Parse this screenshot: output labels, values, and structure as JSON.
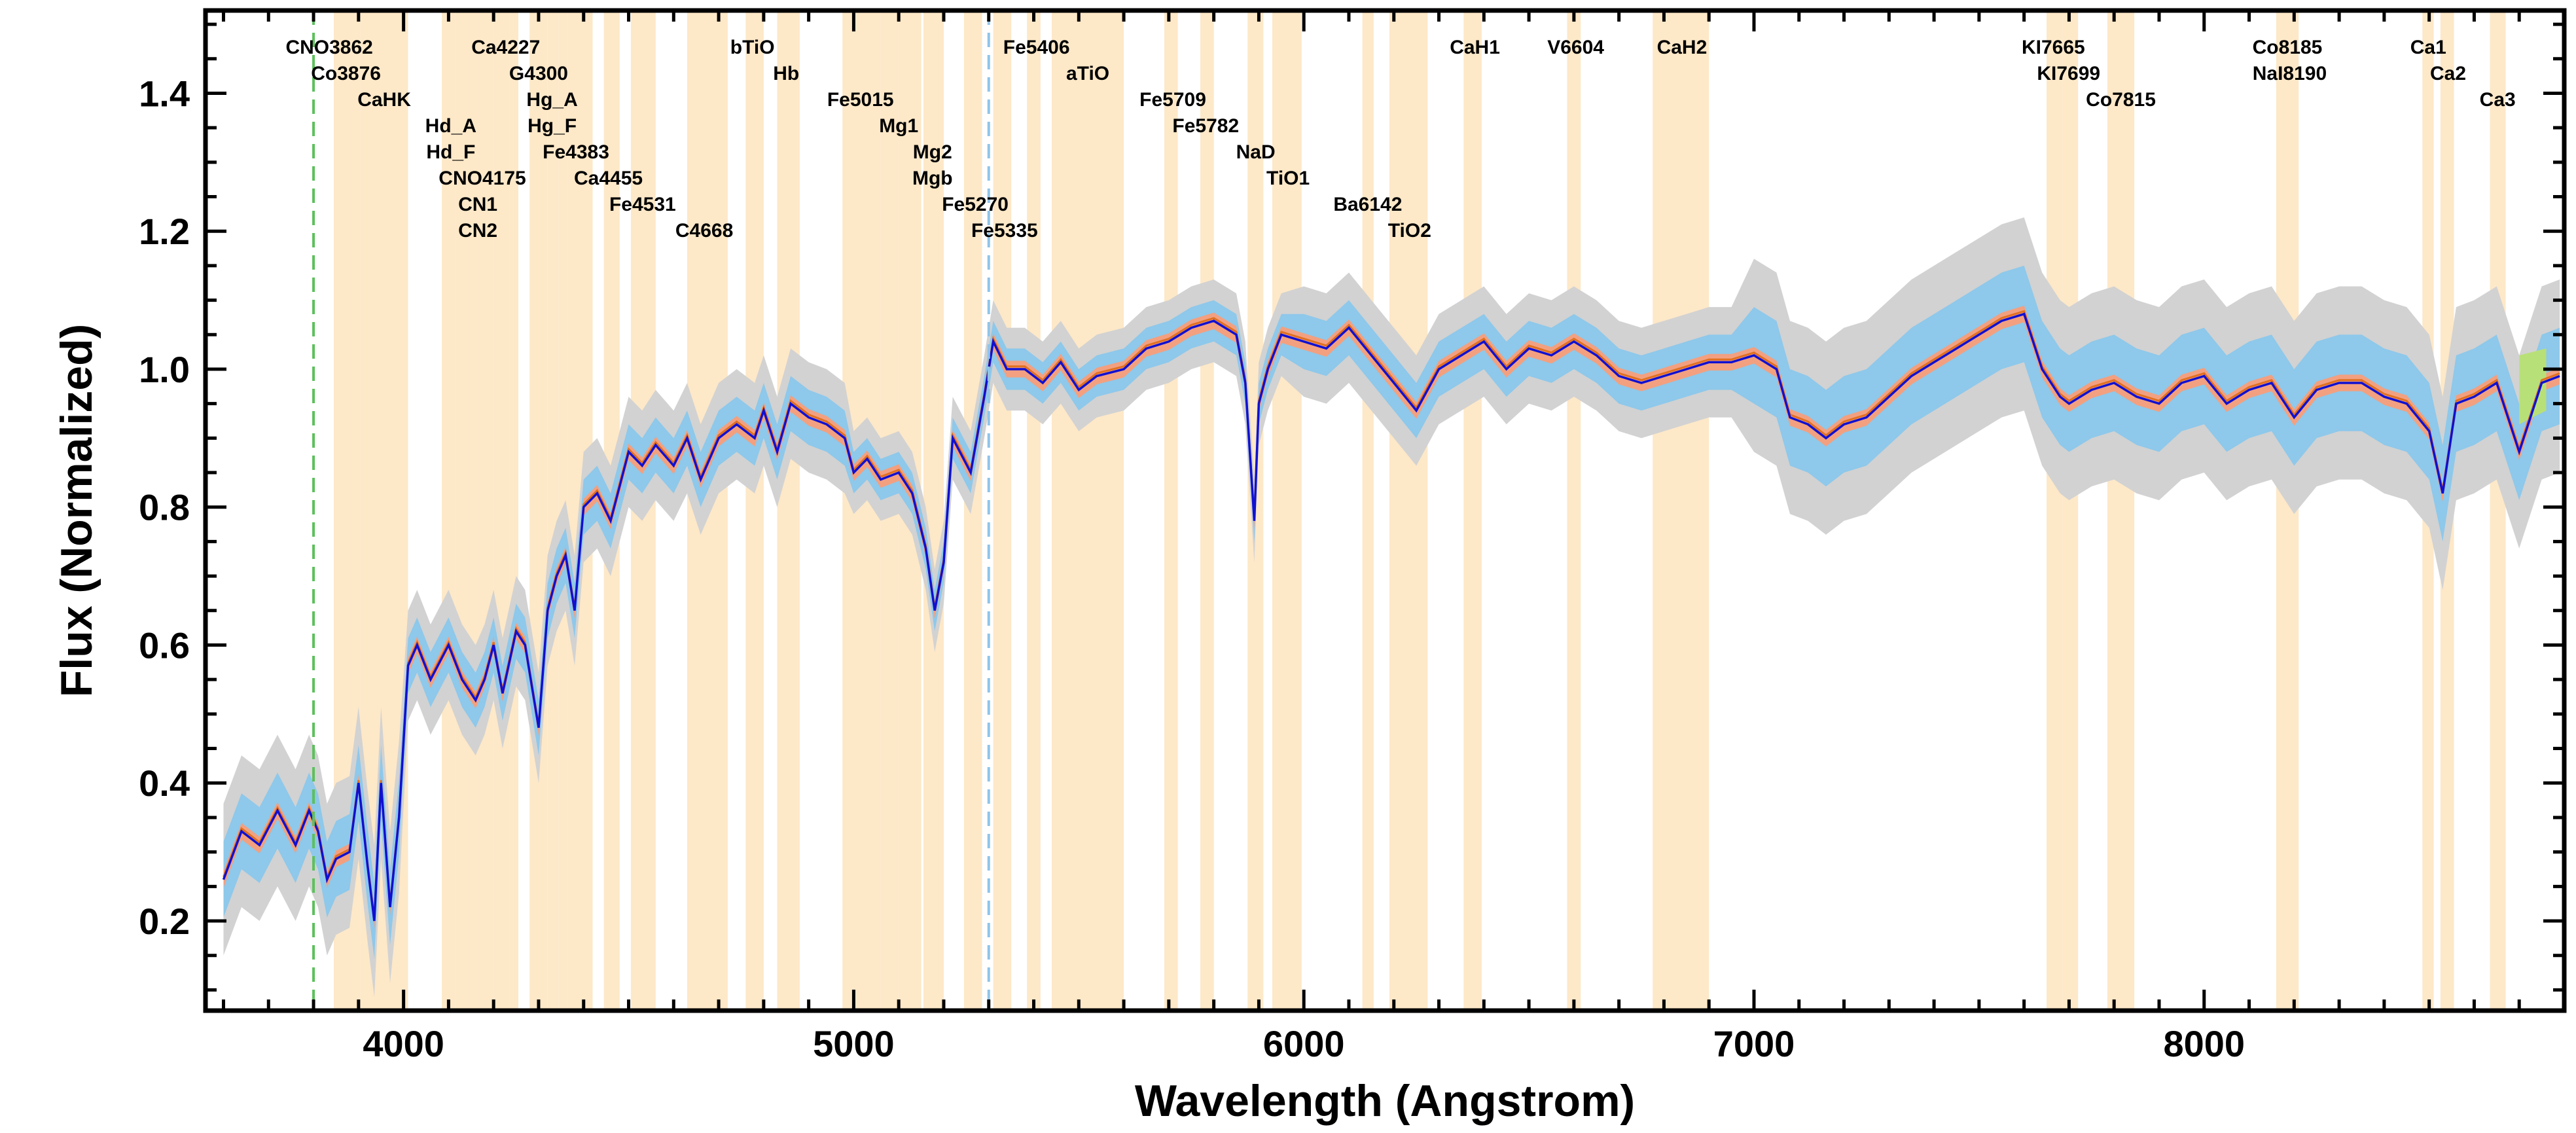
{
  "chart_data": {
    "type": "line",
    "title": "",
    "xlabel": "Wavelength (Angstrom)",
    "ylabel": "Flux (Normalized)",
    "xlim": [
      3560,
      8800
    ],
    "ylim": [
      0.07,
      1.52
    ],
    "xticks": [
      4000,
      5000,
      6000,
      7000,
      8000
    ],
    "xtick_labels": [
      "4000",
      "5000",
      "6000",
      "7000",
      "8000"
    ],
    "yticks": [
      0.2,
      0.4,
      0.6,
      0.8,
      1.0,
      1.2,
      1.4
    ],
    "ytick_labels": [
      "0.2",
      "0.4",
      "0.6",
      "0.8",
      "1.0",
      "1.2",
      "1.4"
    ],
    "grid": false,
    "legend": "none",
    "colors": {
      "spectrum": "#1010d0",
      "model": "#e07020",
      "sigma1": "#8ec8ea",
      "sigma2": "#d2d2d2",
      "sigma_model": "#f2a080",
      "extra_region": "#b8e078",
      "index_band": "#fde8c8",
      "marker_green": "#5cc05c",
      "marker_blue": "#8fc4ea"
    },
    "vertical_markers": [
      {
        "name": "green-dashed",
        "x": 3800
      },
      {
        "name": "blue-dashed",
        "x": 5300
      }
    ],
    "series": [
      {
        "kind": "spectrum",
        "x": [
          3600,
          3640,
          3680,
          3720,
          3760,
          3790,
          3810,
          3830,
          3850,
          3880,
          3900,
          3920,
          3935,
          3950,
          3970,
          3990,
          4010,
          4030,
          4060,
          4100,
          4130,
          4160,
          4180,
          4200,
          4220,
          4250,
          4270,
          4300,
          4320,
          4340,
          4360,
          4380,
          4400,
          4430,
          4460,
          4500,
          4530,
          4560,
          4600,
          4630,
          4660,
          4700,
          4740,
          4780,
          4800,
          4830,
          4860,
          4900,
          4940,
          4980,
          5000,
          5030,
          5060,
          5100,
          5130,
          5160,
          5180,
          5200,
          5220,
          5260,
          5290,
          5310,
          5340,
          5380,
          5420,
          5460,
          5500,
          5540,
          5600,
          5650,
          5700,
          5750,
          5800,
          5850,
          5870,
          5890,
          5900,
          5920,
          5950,
          6000,
          6050,
          6100,
          6150,
          6200,
          6250,
          6300,
          6350,
          6400,
          6450,
          6500,
          6550,
          6600,
          6650,
          6700,
          6750,
          6800,
          6850,
          6900,
          6950,
          7000,
          7050,
          7080,
          7120,
          7160,
          7200,
          7250,
          7300,
          7350,
          7400,
          7450,
          7500,
          7550,
          7600,
          7640,
          7680,
          7700,
          7750,
          7800,
          7850,
          7900,
          7950,
          8000,
          8050,
          8100,
          8150,
          8200,
          8250,
          8300,
          8350,
          8400,
          8450,
          8500,
          8530,
          8560,
          8600,
          8650,
          8700,
          8750,
          8790
        ],
        "y": [
          0.26,
          0.33,
          0.31,
          0.36,
          0.31,
          0.36,
          0.33,
          0.26,
          0.29,
          0.3,
          0.4,
          0.28,
          0.2,
          0.4,
          0.22,
          0.35,
          0.57,
          0.6,
          0.55,
          0.6,
          0.55,
          0.52,
          0.55,
          0.6,
          0.53,
          0.62,
          0.6,
          0.48,
          0.65,
          0.7,
          0.73,
          0.65,
          0.8,
          0.82,
          0.78,
          0.88,
          0.86,
          0.89,
          0.86,
          0.9,
          0.84,
          0.9,
          0.92,
          0.9,
          0.94,
          0.88,
          0.95,
          0.93,
          0.92,
          0.9,
          0.85,
          0.87,
          0.84,
          0.85,
          0.82,
          0.74,
          0.65,
          0.72,
          0.9,
          0.85,
          0.96,
          1.04,
          1.0,
          1.0,
          0.98,
          1.01,
          0.97,
          0.99,
          1.0,
          1.03,
          1.04,
          1.06,
          1.07,
          1.05,
          0.98,
          0.78,
          0.95,
          1.0,
          1.05,
          1.04,
          1.03,
          1.06,
          1.02,
          0.98,
          0.94,
          1.0,
          1.02,
          1.04,
          1.0,
          1.03,
          1.02,
          1.04,
          1.02,
          0.99,
          0.98,
          0.99,
          1.0,
          1.01,
          1.01,
          1.02,
          1.0,
          0.93,
          0.92,
          0.9,
          0.92,
          0.93,
          0.96,
          0.99,
          1.01,
          1.03,
          1.05,
          1.07,
          1.08,
          1.0,
          0.96,
          0.95,
          0.97,
          0.98,
          0.96,
          0.95,
          0.98,
          0.99,
          0.95,
          0.97,
          0.98,
          0.93,
          0.97,
          0.98,
          0.98,
          0.96,
          0.95,
          0.91,
          0.82,
          0.95,
          0.96,
          0.98,
          0.88,
          0.98,
          0.99
        ]
      }
    ],
    "index_bands": [
      {
        "name": "CNO3862",
        "x0": 3845,
        "x1": 3880
      },
      {
        "name": "Co3876",
        "x0": 3880,
        "x1": 3905
      },
      {
        "name": "CaHK",
        "x0": 3905,
        "x1": 4010
      },
      {
        "name": "Hd_A",
        "x0": 4085,
        "x1": 4115
      },
      {
        "name": "Hd_F",
        "x0": 4115,
        "x1": 4140
      },
      {
        "name": "CNO4175",
        "x0": 4140,
        "x1": 4165
      },
      {
        "name": "CN1",
        "x0": 4165,
        "x1": 4200
      },
      {
        "name": "CN2",
        "x0": 4200,
        "x1": 4235
      },
      {
        "name": "Ca4227",
        "x0": 4235,
        "x1": 4255
      },
      {
        "name": "G4300",
        "x0": 4280,
        "x1": 4320
      },
      {
        "name": "Hg_A",
        "x0": 4320,
        "x1": 4345
      },
      {
        "name": "Hg_F",
        "x0": 4345,
        "x1": 4365
      },
      {
        "name": "Fe4383",
        "x0": 4365,
        "x1": 4420
      },
      {
        "name": "Ca4455",
        "x0": 4445,
        "x1": 4480
      },
      {
        "name": "Fe4531",
        "x0": 4505,
        "x1": 4560
      },
      {
        "name": "C4668",
        "x0": 4630,
        "x1": 4720
      },
      {
        "name": "bTiO",
        "x0": 4760,
        "x1": 4800
      },
      {
        "name": "Hb",
        "x0": 4830,
        "x1": 4880
      },
      {
        "name": "Fe5015",
        "x0": 4975,
        "x1": 5060
      },
      {
        "name": "Mg1",
        "x0": 5060,
        "x1": 5100
      },
      {
        "name": "Mg2",
        "x0": 5100,
        "x1": 5150
      },
      {
        "name": "Mgb",
        "x0": 5155,
        "x1": 5200
      },
      {
        "name": "Fe5270",
        "x0": 5245,
        "x1": 5285
      },
      {
        "name": "Fe5335",
        "x0": 5310,
        "x1": 5350
      },
      {
        "name": "Fe5406",
        "x0": 5385,
        "x1": 5415
      },
      {
        "name": "aTiO",
        "x0": 5440,
        "x1": 5600
      },
      {
        "name": "Fe5709",
        "x0": 5690,
        "x1": 5720
      },
      {
        "name": "Fe5782",
        "x0": 5770,
        "x1": 5800
      },
      {
        "name": "NaD",
        "x0": 5875,
        "x1": 5910
      },
      {
        "name": "TiO1",
        "x0": 5930,
        "x1": 5995
      },
      {
        "name": "Ba6142",
        "x0": 6130,
        "x1": 6155
      },
      {
        "name": "TiO2",
        "x0": 6190,
        "x1": 6275
      },
      {
        "name": "CaH1",
        "x0": 6355,
        "x1": 6395
      },
      {
        "name": "V6604",
        "x0": 6585,
        "x1": 6615
      },
      {
        "name": "CaH2",
        "x0": 6775,
        "x1": 6900
      },
      {
        "name": "KI7665",
        "x0": 7650,
        "x1": 7685
      },
      {
        "name": "KI7699",
        "x0": 7685,
        "x1": 7720
      },
      {
        "name": "Co7815",
        "x0": 7785,
        "x1": 7845
      },
      {
        "name": "Co8185",
        "x0": 8160,
        "x1": 8190
      },
      {
        "name": "NaI8190",
        "x0": 8190,
        "x1": 8210
      },
      {
        "name": "Ca1",
        "x0": 8485,
        "x1": 8510
      },
      {
        "name": "Ca2",
        "x0": 8525,
        "x1": 8555
      },
      {
        "name": "Ca3",
        "x0": 8635,
        "x1": 8670
      }
    ],
    "band_labels": [
      {
        "text": "CNO3862",
        "x": 3835,
        "row": 0
      },
      {
        "text": "Co3876",
        "x": 3872,
        "row": 1
      },
      {
        "text": "CaHK",
        "x": 3957,
        "row": 2
      },
      {
        "text": "Hd_A",
        "x": 4105,
        "row": 3
      },
      {
        "text": "Hd_F",
        "x": 4105,
        "row": 4
      },
      {
        "text": "CNO4175",
        "x": 4175,
        "row": 5
      },
      {
        "text": "CN1",
        "x": 4165,
        "row": 6
      },
      {
        "text": "CN2",
        "x": 4165,
        "row": 7
      },
      {
        "text": "Ca4227",
        "x": 4227,
        "row": 0
      },
      {
        "text": "G4300",
        "x": 4300,
        "row": 1
      },
      {
        "text": "Hg_A",
        "x": 4330,
        "row": 2
      },
      {
        "text": "Hg_F",
        "x": 4330,
        "row": 3
      },
      {
        "text": "Fe4383",
        "x": 4383,
        "row": 4
      },
      {
        "text": "Ca4455",
        "x": 4455,
        "row": 5
      },
      {
        "text": "Fe4531",
        "x": 4531,
        "row": 6
      },
      {
        "text": "C4668",
        "x": 4668,
        "row": 7
      },
      {
        "text": "bTiO",
        "x": 4775,
        "row": 0
      },
      {
        "text": "Hb",
        "x": 4850,
        "row": 1
      },
      {
        "text": "Fe5015",
        "x": 5015,
        "row": 2
      },
      {
        "text": "Mg1",
        "x": 5100,
        "row": 3
      },
      {
        "text": "Mg2",
        "x": 5175,
        "row": 4
      },
      {
        "text": "Mgb",
        "x": 5175,
        "row": 5
      },
      {
        "text": "Fe5270",
        "x": 5270,
        "row": 6
      },
      {
        "text": "Fe5335",
        "x": 5335,
        "row": 7
      },
      {
        "text": "Fe5406",
        "x": 5406,
        "row": 0
      },
      {
        "text": "aTiO",
        "x": 5520,
        "row": 1
      },
      {
        "text": "Fe5709",
        "x": 5709,
        "row": 2
      },
      {
        "text": "Fe5782",
        "x": 5782,
        "row": 3
      },
      {
        "text": "NaD",
        "x": 5893,
        "row": 4
      },
      {
        "text": "TiO1",
        "x": 5965,
        "row": 5
      },
      {
        "text": "Ba6142",
        "x": 6142,
        "row": 6
      },
      {
        "text": "TiO2",
        "x": 6235,
        "row": 7
      },
      {
        "text": "CaH1",
        "x": 6380,
        "row": 0
      },
      {
        "text": "V6604",
        "x": 6604,
        "row": 0
      },
      {
        "text": "CaH2",
        "x": 6840,
        "row": 0
      },
      {
        "text": "KI7665",
        "x": 7665,
        "row": 0
      },
      {
        "text": "KI7699",
        "x": 7699,
        "row": 1
      },
      {
        "text": "Co7815",
        "x": 7815,
        "row": 2
      },
      {
        "text": "Co8185",
        "x": 8185,
        "row": 0
      },
      {
        "text": "NaI8190",
        "x": 8190,
        "row": 1
      },
      {
        "text": "Ca1",
        "x": 8498,
        "row": 0
      },
      {
        "text": "Ca2",
        "x": 8542,
        "row": 1
      },
      {
        "text": "Ca3",
        "x": 8652,
        "row": 2
      }
    ]
  }
}
